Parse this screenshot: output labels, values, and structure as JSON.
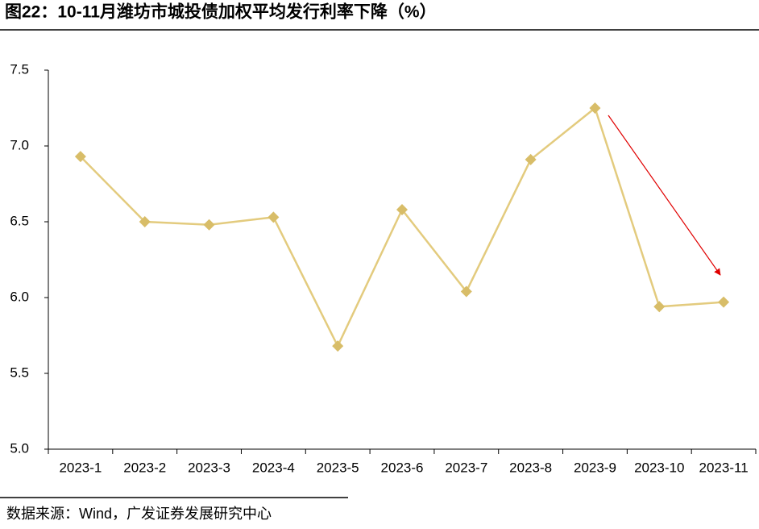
{
  "chart_data": {
    "type": "line",
    "title": "图22：10-11月潍坊市城投债加权平均发行利率下降（%）",
    "source": "数据来源：Wind，广发证券发展研究中心",
    "categories": [
      "2023-1",
      "2023-2",
      "2023-3",
      "2023-4",
      "2023-5",
      "2023-6",
      "2023-7",
      "2023-8",
      "2023-9",
      "2023-10",
      "2023-11"
    ],
    "series": [
      {
        "color": "#e3cb7e",
        "values": [
          6.93,
          6.5,
          6.48,
          6.53,
          5.68,
          6.58,
          6.04,
          6.91,
          7.25,
          5.94,
          5.97
        ]
      }
    ],
    "ylim": [
      5.0,
      7.5
    ],
    "yticks": [
      {
        "value": 5,
        "label": "5.0"
      },
      {
        "value": 5.5,
        "label": "5.5"
      },
      {
        "value": 6,
        "label": "6.0"
      },
      {
        "value": 6.5,
        "label": "6.5"
      },
      {
        "value": 7,
        "label": "7.0"
      },
      {
        "value": 7.5,
        "label": "7.5"
      }
    ]
  }
}
